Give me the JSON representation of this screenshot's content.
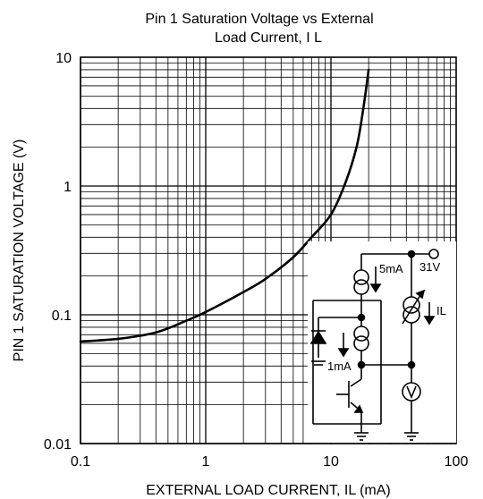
{
  "chart_data": {
    "type": "line",
    "title_line1": "Pin 1 Saturation Voltage vs External",
    "title_line2": "Load Current, I L",
    "xlabel": "EXTERNAL LOAD CURRENT, IL (mA)",
    "ylabel": "PIN 1 SATURATION VOLTAGE (V)",
    "x_scale": "log",
    "y_scale": "log",
    "xlim": [
      0.1,
      100
    ],
    "ylim": [
      0.01,
      10
    ],
    "grid": true,
    "x_ticks": [
      {
        "value": 0.1,
        "label": "0.1"
      },
      {
        "value": 1,
        "label": "1"
      },
      {
        "value": 10,
        "label": "10"
      },
      {
        "value": 100,
        "label": "100"
      }
    ],
    "y_ticks": [
      {
        "value": 0.01,
        "label": "0.01"
      },
      {
        "value": 0.1,
        "label": "0.1"
      },
      {
        "value": 1,
        "label": "1"
      },
      {
        "value": 10,
        "label": "10"
      }
    ],
    "series": [
      {
        "x": [
          0.1,
          0.2,
          0.4,
          0.7,
          1,
          2,
          3,
          5,
          7,
          10,
          13,
          16,
          18,
          20
        ],
        "y": [
          0.062,
          0.065,
          0.073,
          0.09,
          0.105,
          0.15,
          0.19,
          0.28,
          0.4,
          0.6,
          1.05,
          2,
          3.8,
          8
        ]
      }
    ],
    "inset_labels": {
      "source_top": "5mA",
      "supply": "31V",
      "current_meter": "IL",
      "source_mid": "1mA"
    }
  }
}
